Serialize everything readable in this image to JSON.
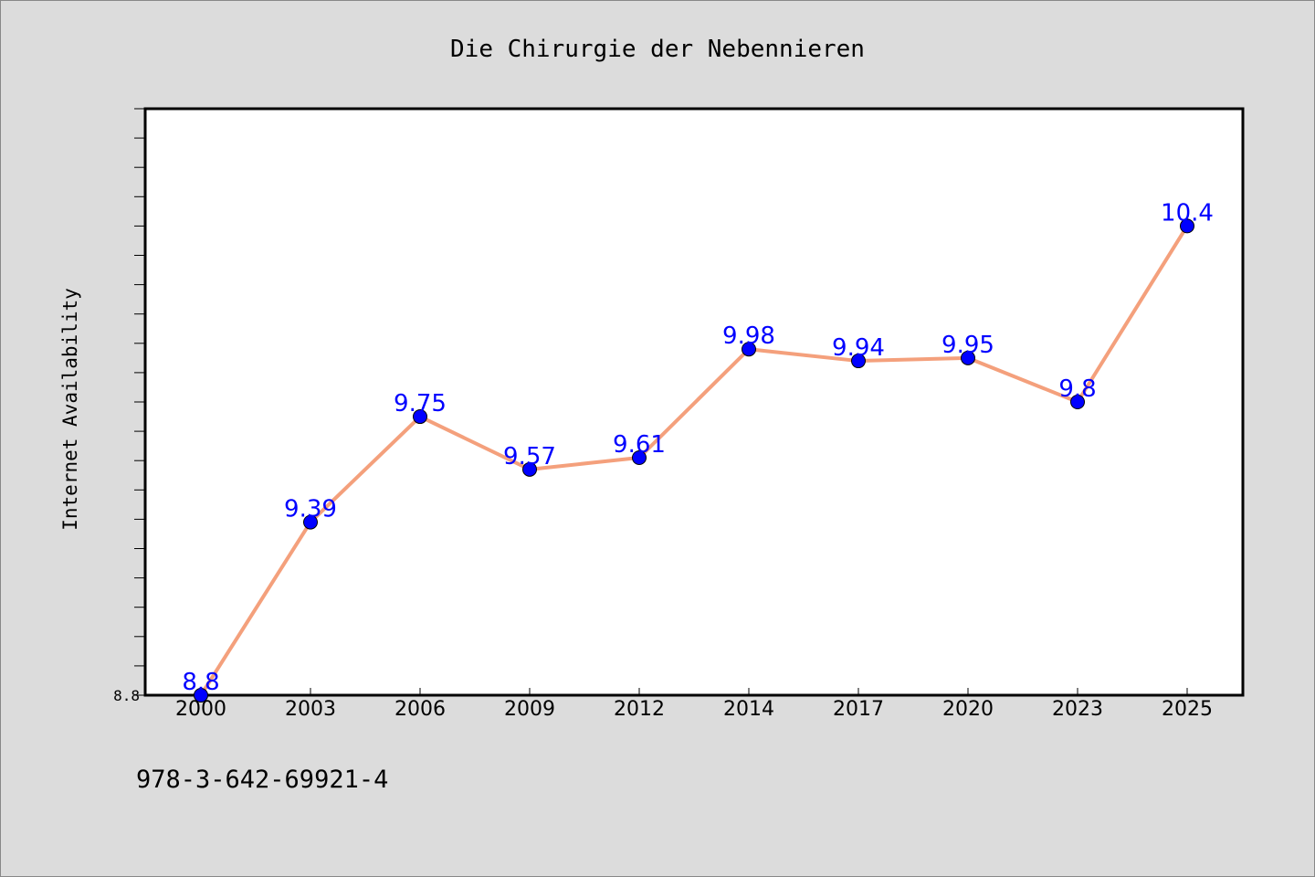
{
  "chart_data": {
    "type": "line",
    "title": "Die Chirurgie der Nebennieren",
    "xlabel": "",
    "ylabel": "Internet Availability",
    "categories": [
      "2000",
      "2003",
      "2006",
      "2009",
      "2012",
      "2014",
      "2017",
      "2020",
      "2023",
      "2025"
    ],
    "series": [
      {
        "values": [
          8.8,
          9.39,
          9.75,
          9.57,
          9.61,
          9.98,
          9.94,
          9.95,
          9.8,
          10.4
        ],
        "labels": [
          "8.8",
          "9.39",
          "9.75",
          "9.57",
          "9.61",
          "9.98",
          "9.94",
          "9.95",
          "9.8",
          "10.4"
        ]
      }
    ],
    "ylim": [
      8.8,
      10.8
    ],
    "ytick_labels": [
      "8.8"
    ],
    "minor_tick_step": 0.1,
    "grid": false,
    "line_color": "#f4a07c",
    "marker_color": "#0000ff",
    "data_label_color": "#0000ff",
    "plot_background": "#ffffff",
    "page_background": "#dcdcdc"
  },
  "footer": "978-3-642-69921-4"
}
